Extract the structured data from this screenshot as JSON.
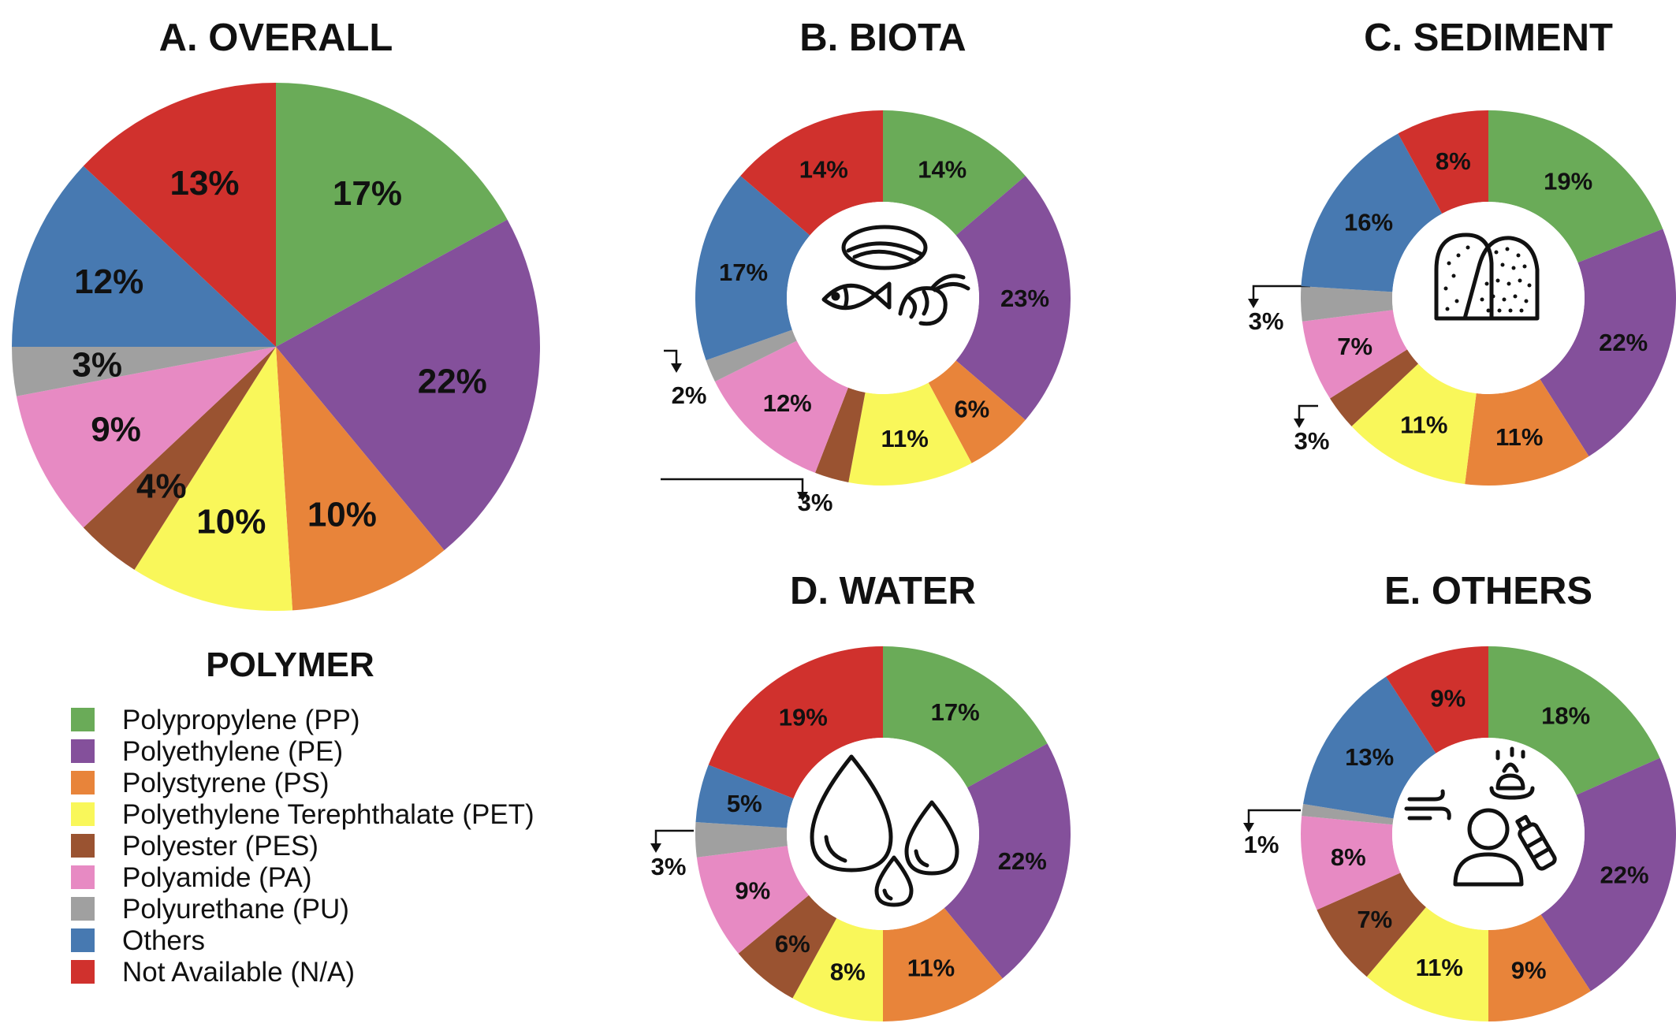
{
  "legend": {
    "title": "POLYMER",
    "items": [
      {
        "label": "Polypropylene (PP)",
        "color": "#6aab58"
      },
      {
        "label": "Polyethylene (PE)",
        "color": "#84509b"
      },
      {
        "label": "Polystyrene (PS)",
        "color": "#e8843a"
      },
      {
        "label": "Polyethylene Terephthalate (PET)",
        "color": "#f9f75a"
      },
      {
        "label": "Polyester (PES)",
        "color": "#9a5331"
      },
      {
        "label": "Polyamide (PA)",
        "color": "#e78ac3"
      },
      {
        "label": "Polyurethane (PU)",
        "color": "#a0a0a0"
      },
      {
        "label": "Others",
        "color": "#4779b1"
      },
      {
        "label": "Not Available (N/A)",
        "color": "#d0312d"
      }
    ]
  },
  "chart_data": [
    {
      "type": "pie",
      "title": "A. OVERALL",
      "categories": [
        "Polypropylene (PP)",
        "Polyethylene (PE)",
        "Polystyrene (PS)",
        "Polyethylene Terephthalate (PET)",
        "Polyester (PES)",
        "Polyamide (PA)",
        "Polyurethane (PU)",
        "Others",
        "Not Available (N/A)"
      ],
      "values": [
        17,
        22,
        10,
        10,
        4,
        9,
        3,
        12,
        13
      ],
      "labels": [
        "17%",
        "22%",
        "10%",
        "10%",
        "4%",
        "9%",
        "3%",
        "12%",
        "13%"
      ]
    },
    {
      "type": "pie",
      "donut": true,
      "icon": "marine-organisms-icon",
      "title": "B. BIOTA",
      "categories": [
        "Polypropylene (PP)",
        "Polyethylene (PE)",
        "Polystyrene (PS)",
        "Polyethylene Terephthalate (PET)",
        "Polyester (PES)",
        "Polyamide (PA)",
        "Polyurethane (PU)",
        "Others",
        "Not Available (N/A)"
      ],
      "values": [
        14,
        23,
        6,
        11,
        3,
        12,
        2,
        17,
        14
      ],
      "labels": [
        "14%",
        "23%",
        "6%",
        "11%",
        "3%",
        "12%",
        "2%",
        "17%",
        "14%"
      ]
    },
    {
      "type": "pie",
      "donut": true,
      "icon": "sediment-icon",
      "title": "C. SEDIMENT",
      "categories": [
        "Polypropylene (PP)",
        "Polyethylene (PE)",
        "Polystyrene (PS)",
        "Polyethylene Terephthalate (PET)",
        "Polyester (PES)",
        "Polyamide (PA)",
        "Polyurethane (PU)",
        "Others",
        "Not Available (N/A)"
      ],
      "values": [
        19,
        22,
        11,
        11,
        3,
        7,
        3,
        16,
        8
      ],
      "labels": [
        "19%",
        "22%",
        "11%",
        "11%",
        "3%",
        "7%",
        "3%",
        "16%",
        "8%"
      ]
    },
    {
      "type": "pie",
      "donut": true,
      "icon": "water-drops-icon",
      "title": "D. WATER",
      "categories": [
        "Polypropylene (PP)",
        "Polyethylene (PE)",
        "Polystyrene (PS)",
        "Polyethylene Terephthalate (PET)",
        "Polyester (PES)",
        "Polyamide (PA)",
        "Polyurethane (PU)",
        "Others",
        "Not Available (N/A)"
      ],
      "values": [
        17,
        22,
        11,
        8,
        6,
        9,
        3,
        5,
        19
      ],
      "labels": [
        "17%",
        "22%",
        "11%",
        "8%",
        "6%",
        "9%",
        "3%",
        "5%",
        "19%"
      ]
    },
    {
      "type": "pie",
      "donut": true,
      "icon": "human-air-bottle-icon",
      "title": "E. OTHERS",
      "categories": [
        "Polypropylene (PP)",
        "Polyethylene (PE)",
        "Polystyrene (PS)",
        "Polyethylene Terephthalate (PET)",
        "Polyester (PES)",
        "Polyamide (PA)",
        "Polyurethane (PU)",
        "Others",
        "Not Available (N/A)"
      ],
      "values": [
        18,
        22,
        9,
        11,
        7,
        8,
        1,
        13,
        9
      ],
      "labels": [
        "18%",
        "22%",
        "9%",
        "11%",
        "7%",
        "8%",
        "1%",
        "13%",
        "9%"
      ]
    }
  ]
}
